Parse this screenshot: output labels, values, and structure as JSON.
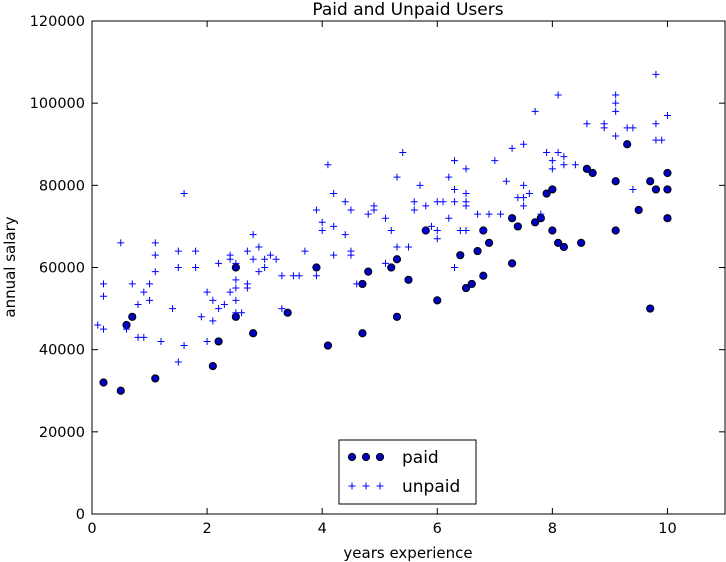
{
  "chart_data": {
    "type": "scatter",
    "title": "Paid and Unpaid Users",
    "xlabel": "years experience",
    "ylabel": "annual salary",
    "xlim": [
      0,
      11
    ],
    "ylim": [
      0,
      120000
    ],
    "xticks": [
      0,
      2,
      4,
      6,
      8,
      10
    ],
    "yticks": [
      0,
      20000,
      40000,
      60000,
      80000,
      100000,
      120000
    ],
    "grid": false,
    "legend_position": "bottom-center",
    "series": [
      {
        "name": "paid",
        "marker": "circle",
        "color": "#0000bf",
        "points": [
          [
            0.2,
            32000
          ],
          [
            0.5,
            30000
          ],
          [
            0.6,
            46000
          ],
          [
            0.7,
            48000
          ],
          [
            1.1,
            33000
          ],
          [
            2.1,
            36000
          ],
          [
            2.2,
            42000
          ],
          [
            2.5,
            60000
          ],
          [
            2.5,
            48000
          ],
          [
            2.8,
            44000
          ],
          [
            3.4,
            49000
          ],
          [
            3.9,
            60000
          ],
          [
            4.1,
            41000
          ],
          [
            4.7,
            56000
          ],
          [
            4.7,
            44000
          ],
          [
            4.8,
            59000
          ],
          [
            5.2,
            60000
          ],
          [
            5.3,
            62000
          ],
          [
            5.3,
            48000
          ],
          [
            5.5,
            57000
          ],
          [
            5.8,
            69000
          ],
          [
            6.0,
            52000
          ],
          [
            6.4,
            63000
          ],
          [
            6.5,
            55000
          ],
          [
            6.6,
            56000
          ],
          [
            6.7,
            64000
          ],
          [
            6.8,
            58000
          ],
          [
            6.8,
            69000
          ],
          [
            6.9,
            66000
          ],
          [
            7.3,
            72000
          ],
          [
            7.3,
            61000
          ],
          [
            7.4,
            70000
          ],
          [
            7.7,
            71000
          ],
          [
            7.8,
            72000
          ],
          [
            7.9,
            78000
          ],
          [
            8.0,
            79000
          ],
          [
            8.0,
            69000
          ],
          [
            8.1,
            66000
          ],
          [
            8.2,
            65000
          ],
          [
            8.5,
            66000
          ],
          [
            8.6,
            84000
          ],
          [
            8.7,
            83000
          ],
          [
            9.1,
            81000
          ],
          [
            9.1,
            69000
          ],
          [
            9.3,
            90000
          ],
          [
            9.5,
            74000
          ],
          [
            9.7,
            81000
          ],
          [
            9.7,
            50000
          ],
          [
            9.8,
            79000
          ],
          [
            10.0,
            83000
          ],
          [
            10.0,
            79000
          ],
          [
            10.0,
            72000
          ]
        ]
      },
      {
        "name": "unpaid",
        "marker": "plus",
        "color": "#0000ff",
        "points": [
          [
            0.1,
            46000
          ],
          [
            0.2,
            45000
          ],
          [
            0.2,
            53000
          ],
          [
            0.2,
            56000
          ],
          [
            0.5,
            66000
          ],
          [
            0.6,
            45000
          ],
          [
            0.7,
            56000
          ],
          [
            0.8,
            51000
          ],
          [
            0.8,
            43000
          ],
          [
            0.9,
            54000
          ],
          [
            0.9,
            43000
          ],
          [
            1.0,
            56000
          ],
          [
            1.0,
            52000
          ],
          [
            1.1,
            59000
          ],
          [
            1.1,
            63000
          ],
          [
            1.1,
            66000
          ],
          [
            1.2,
            42000
          ],
          [
            1.4,
            50000
          ],
          [
            1.5,
            37000
          ],
          [
            1.5,
            60000
          ],
          [
            1.5,
            64000
          ],
          [
            1.6,
            41000
          ],
          [
            1.6,
            78000
          ],
          [
            1.8,
            60000
          ],
          [
            1.8,
            64000
          ],
          [
            1.9,
            48000
          ],
          [
            2.0,
            54000
          ],
          [
            2.0,
            42000
          ],
          [
            2.1,
            52000
          ],
          [
            2.1,
            47000
          ],
          [
            2.2,
            50000
          ],
          [
            2.2,
            61000
          ],
          [
            2.3,
            51000
          ],
          [
            2.4,
            54000
          ],
          [
            2.4,
            62000
          ],
          [
            2.4,
            63000
          ],
          [
            2.5,
            61000
          ],
          [
            2.5,
            57000
          ],
          [
            2.5,
            55000
          ],
          [
            2.5,
            52000
          ],
          [
            2.5,
            49000
          ],
          [
            2.6,
            49000
          ],
          [
            2.7,
            56000
          ],
          [
            2.7,
            55000
          ],
          [
            2.7,
            64000
          ],
          [
            2.8,
            68000
          ],
          [
            2.8,
            62000
          ],
          [
            2.9,
            59000
          ],
          [
            2.9,
            65000
          ],
          [
            3.0,
            60000
          ],
          [
            3.0,
            62000
          ],
          [
            3.1,
            63000
          ],
          [
            3.2,
            62000
          ],
          [
            3.3,
            58000
          ],
          [
            3.3,
            50000
          ],
          [
            3.5,
            58000
          ],
          [
            3.6,
            58000
          ],
          [
            3.7,
            64000
          ],
          [
            3.9,
            58000
          ],
          [
            3.9,
            74000
          ],
          [
            4.0,
            71000
          ],
          [
            4.0,
            69000
          ],
          [
            4.1,
            85000
          ],
          [
            4.2,
            63000
          ],
          [
            4.2,
            78000
          ],
          [
            4.2,
            70000
          ],
          [
            4.4,
            76000
          ],
          [
            4.4,
            68000
          ],
          [
            4.5,
            64000
          ],
          [
            4.5,
            74000
          ],
          [
            4.5,
            63000
          ],
          [
            4.6,
            56000
          ],
          [
            4.8,
            73000
          ],
          [
            4.9,
            75000
          ],
          [
            4.9,
            74000
          ],
          [
            5.1,
            61000
          ],
          [
            5.1,
            72000
          ],
          [
            5.2,
            69000
          ],
          [
            5.3,
            65000
          ],
          [
            5.3,
            82000
          ],
          [
            5.4,
            88000
          ],
          [
            5.5,
            65000
          ],
          [
            5.6,
            74000
          ],
          [
            5.6,
            76000
          ],
          [
            5.7,
            80000
          ],
          [
            5.8,
            75000
          ],
          [
            5.8,
            69000
          ],
          [
            5.9,
            70000
          ],
          [
            6.0,
            76000
          ],
          [
            6.0,
            67000
          ],
          [
            6.0,
            69000
          ],
          [
            6.1,
            76000
          ],
          [
            6.2,
            72000
          ],
          [
            6.2,
            82000
          ],
          [
            6.3,
            79000
          ],
          [
            6.3,
            86000
          ],
          [
            6.3,
            76000
          ],
          [
            6.3,
            60000
          ],
          [
            6.4,
            69000
          ],
          [
            6.5,
            76000
          ],
          [
            6.5,
            78000
          ],
          [
            6.5,
            84000
          ],
          [
            6.5,
            75000
          ],
          [
            6.5,
            69000
          ],
          [
            6.7,
            73000
          ],
          [
            6.8,
            69000
          ],
          [
            6.9,
            73000
          ],
          [
            7.0,
            86000
          ],
          [
            7.1,
            73000
          ],
          [
            7.2,
            81000
          ],
          [
            7.3,
            89000
          ],
          [
            7.4,
            77000
          ],
          [
            7.5,
            80000
          ],
          [
            7.5,
            90000
          ],
          [
            7.5,
            75000
          ],
          [
            7.5,
            77000
          ],
          [
            7.6,
            78000
          ],
          [
            7.7,
            98000
          ],
          [
            7.8,
            73000
          ],
          [
            7.9,
            88000
          ],
          [
            8.0,
            86000
          ],
          [
            8.0,
            84000
          ],
          [
            8.1,
            102000
          ],
          [
            8.1,
            88000
          ],
          [
            8.2,
            85000
          ],
          [
            8.2,
            87000
          ],
          [
            8.4,
            85000
          ],
          [
            8.6,
            95000
          ],
          [
            8.9,
            95000
          ],
          [
            8.9,
            94000
          ],
          [
            9.1,
            92000
          ],
          [
            9.1,
            98000
          ],
          [
            9.1,
            100000
          ],
          [
            9.1,
            102000
          ],
          [
            9.3,
            94000
          ],
          [
            9.4,
            94000
          ],
          [
            9.4,
            79000
          ],
          [
            9.8,
            107000
          ],
          [
            9.8,
            95000
          ],
          [
            9.8,
            91000
          ],
          [
            9.9,
            91000
          ],
          [
            10.0,
            97000
          ]
        ]
      }
    ]
  }
}
